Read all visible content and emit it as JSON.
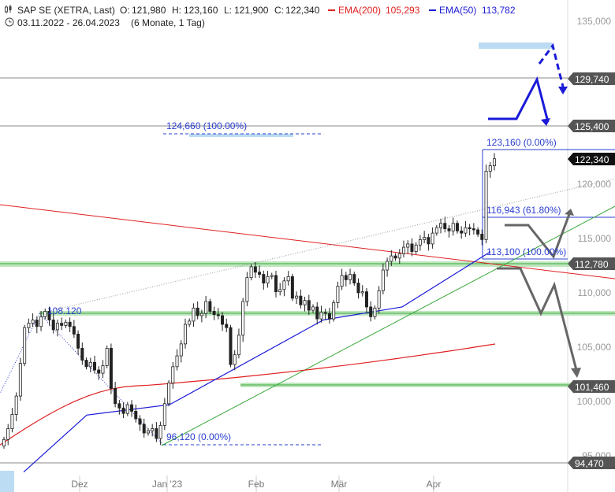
{
  "header": {
    "instrument": "SAP SE (XETRA, Last)",
    "o_label": "O:",
    "o_value": "121,980",
    "h_label": "H:",
    "h_value": "123,160",
    "l_label": "L:",
    "l_value": "121,900",
    "c_label": "C:",
    "c_value": "122,340",
    "ema200_label": "EMA(200)",
    "ema200_value": "105,293",
    "ema50_label": "EMA(50)",
    "ema50_value": "113,782",
    "range": "03.11.2022 - 26.04.2023",
    "period": "(6 Monate, 1 Tag)"
  },
  "colors": {
    "ema200": "#e02020",
    "ema50": "#1a1ad8",
    "support_band": "#bfe6bf",
    "fib": "#2a3fd0",
    "projection_blue": "#1a1ad8",
    "projection_gray": "#666666",
    "trend_green": "#38a838",
    "price_box": "#555555",
    "last_price_box": "#111111"
  },
  "chart_data": {
    "type": "candlestick",
    "ylim": [
      93500,
      136000
    ],
    "y_ticks": [
      {
        "value": 135000,
        "label": "135,000"
      },
      {
        "value": 120000,
        "label": "120,000"
      },
      {
        "value": 115000,
        "label": "115,000"
      },
      {
        "value": 110000,
        "label": "110,000"
      },
      {
        "value": 105000,
        "label": "105,000"
      },
      {
        "value": 100000,
        "label": "100,000"
      },
      {
        "value": 95000,
        "label": "95,000"
      }
    ],
    "x_ticks": [
      "Dez",
      "Jan '23",
      "Feb",
      "Mär",
      "Apr"
    ],
    "levels": [
      {
        "value": 129740,
        "label": "129,740"
      },
      {
        "value": 125400,
        "label": "125,400"
      },
      {
        "value": 122340,
        "label": "122,340",
        "last": true
      },
      {
        "value": 112780,
        "label": "112,780"
      },
      {
        "value": 101460,
        "label": "101,460"
      },
      {
        "value": 94470,
        "label": "94,470"
      }
    ],
    "support_zones": [
      112780,
      108120,
      101460
    ],
    "fib_labels": [
      {
        "value": 124660,
        "text": "124,660 (100.00%)"
      },
      {
        "value": 123160,
        "text": "123,160 (0.00%)"
      },
      {
        "value": 116943,
        "text": "116,943 (61.80%)"
      },
      {
        "value": 113100,
        "text": "113,100 (100.00%)"
      },
      {
        "value": 108120,
        "text": "108.120"
      },
      {
        "value": 96120,
        "text": "96,120 (0.00%)"
      }
    ],
    "closes": [
      96500,
      97500,
      98800,
      100500,
      103500,
      106800,
      107200,
      107500,
      106900,
      107800,
      108300,
      107500,
      106600,
      107200,
      107000,
      107300,
      106900,
      106200,
      104900,
      103800,
      103200,
      103600,
      102900,
      102600,
      103300,
      104900,
      101200,
      99800,
      99400,
      98900,
      99700,
      99100,
      98400,
      97900,
      97100,
      97300,
      97500,
      96600,
      97800,
      99800,
      101700,
      103200,
      104200,
      105300,
      107100,
      107400,
      108600,
      107900,
      108100,
      109200,
      108300,
      108000,
      107900,
      107100,
      106800,
      103400,
      104300,
      106100,
      109200,
      111400,
      112400,
      111900,
      111700,
      110900,
      111500,
      111600,
      110100,
      110300,
      111100,
      111500,
      109500,
      109700,
      108900,
      109300,
      108400,
      108700,
      107600,
      108200,
      108100,
      107600,
      109100,
      110600,
      111600,
      111200,
      111700,
      110900,
      110000,
      110100,
      108700,
      107800,
      108600,
      110200,
      112100,
      112900,
      113400,
      113200,
      113600,
      114200,
      114500,
      113800,
      114400,
      114900,
      115100,
      114500,
      115500,
      116000,
      116400,
      115900,
      115700,
      116400,
      115700,
      115500,
      116000,
      115900,
      115800,
      115400,
      114900,
      121200,
      121700,
      122340
    ],
    "ema200": [
      96000,
      101450,
      105293
    ],
    "ema50": [
      93500,
      98750,
      99700,
      107500,
      108700,
      113782
    ]
  }
}
